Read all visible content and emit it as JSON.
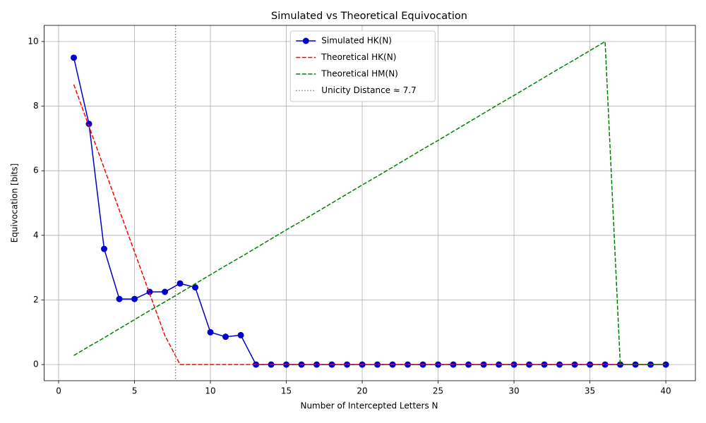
{
  "chart_data": {
    "type": "line",
    "title": "Simulated vs Theoretical Equivocation",
    "xlabel": "Number of Intercepted Letters N",
    "ylabel": "Equivocation [bits]",
    "x": [
      1,
      2,
      3,
      4,
      5,
      6,
      7,
      8,
      9,
      10,
      11,
      12,
      13,
      14,
      15,
      16,
      17,
      18,
      19,
      20,
      21,
      22,
      23,
      24,
      25,
      26,
      27,
      28,
      29,
      30,
      31,
      32,
      33,
      34,
      35,
      36,
      37,
      38,
      39,
      40
    ],
    "series": [
      {
        "name": "Simulated HK(N)",
        "color": "#0000cc",
        "style": "solid",
        "marker": true,
        "values": [
          9.5,
          7.45,
          3.58,
          2.03,
          2.03,
          2.25,
          2.25,
          2.51,
          2.39,
          1.0,
          0.86,
          0.91,
          0,
          0,
          0,
          0,
          0,
          0,
          0,
          0,
          0,
          0,
          0,
          0,
          0,
          0,
          0,
          0,
          0,
          0,
          0,
          0,
          0,
          0,
          0,
          0,
          0,
          0,
          0,
          0
        ]
      },
      {
        "name": "Theoretical HK(N)",
        "color": "#ff0000",
        "style": "dashed",
        "marker": false,
        "values": [
          8.67,
          7.37,
          6.08,
          4.78,
          3.49,
          2.19,
          0.9,
          0,
          0,
          0,
          0,
          0,
          0,
          0,
          0,
          0,
          0,
          0,
          0,
          0,
          0,
          0,
          0,
          0,
          0,
          0,
          0,
          0,
          0,
          0,
          0,
          0,
          0,
          0,
          0,
          0,
          0,
          0,
          0,
          0
        ]
      },
      {
        "name": "Theoretical HM(N)",
        "color": "#008000",
        "style": "dashed",
        "marker": false,
        "values": [
          0.28,
          0.56,
          0.83,
          1.11,
          1.39,
          1.67,
          1.94,
          2.22,
          2.5,
          2.78,
          3.06,
          3.33,
          3.61,
          3.89,
          4.17,
          4.44,
          4.72,
          5.0,
          5.28,
          5.56,
          5.83,
          6.11,
          6.39,
          6.67,
          6.94,
          7.22,
          7.5,
          7.78,
          8.06,
          8.33,
          8.61,
          8.89,
          9.17,
          9.44,
          9.72,
          10.0,
          0,
          0,
          0,
          0
        ]
      }
    ],
    "vline": {
      "name": "Unicity Distance ≈ 7.7",
      "x": 7.7,
      "color": "#808080"
    },
    "xlim": [
      -0.95,
      41.95
    ],
    "ylim": [
      -0.5,
      10.5
    ],
    "xticks": [
      0,
      5,
      10,
      15,
      20,
      25,
      30,
      35,
      40
    ],
    "yticks": [
      0,
      2,
      4,
      6,
      8,
      10
    ],
    "grid": true,
    "legend": "upper center"
  }
}
